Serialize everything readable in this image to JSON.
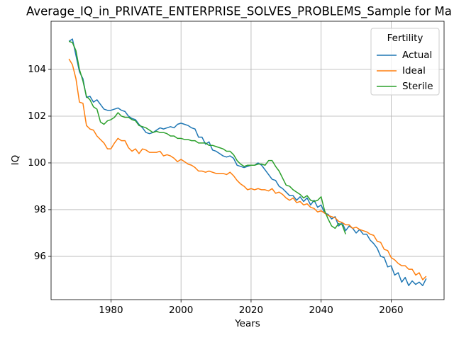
{
  "chart_data": {
    "type": "line",
    "title": "Average_IQ_in_PRIVATE_ENTERPRISE_SOLVES_PROBLEMS_Sample for Ma",
    "xlabel": "Years",
    "ylabel": "IQ",
    "legend_title": "Fertility",
    "legend": "upper right",
    "grid": true,
    "x": [
      1968,
      1969,
      1970,
      1971,
      1972,
      1973,
      1974,
      1975,
      1976,
      1977,
      1978,
      1979,
      1980,
      1981,
      1982,
      1983,
      1984,
      1985,
      1986,
      1987,
      1988,
      1989,
      1990,
      1991,
      1992,
      1993,
      1994,
      1995,
      1996,
      1997,
      1998,
      1999,
      2000,
      2001,
      2002,
      2003,
      2004,
      2005,
      2006,
      2007,
      2008,
      2009,
      2010,
      2011,
      2012,
      2013,
      2014,
      2015,
      2016,
      2017,
      2018,
      2019,
      2020,
      2021,
      2022,
      2023,
      2024,
      2025,
      2026,
      2027,
      2028,
      2029,
      2030,
      2031,
      2032,
      2033,
      2034,
      2035,
      2036,
      2037,
      2038,
      2039,
      2040,
      2041,
      2042,
      2043,
      2044,
      2045,
      2046,
      2047,
      2048,
      2049,
      2050,
      2051,
      2052,
      2053,
      2054,
      2055,
      2056,
      2057,
      2058,
      2059,
      2060,
      2061,
      2062,
      2063,
      2064,
      2065,
      2066,
      2067,
      2068,
      2069,
      2070
    ],
    "series": [
      {
        "name": "Actual",
        "color": "#1f77b4",
        "values": [
          105.2,
          105.3,
          104.6,
          103.9,
          103.6,
          102.8,
          102.85,
          102.6,
          102.7,
          102.5,
          102.3,
          102.25,
          102.25,
          102.3,
          102.35,
          102.25,
          102.2,
          102.0,
          101.9,
          101.85,
          101.65,
          101.5,
          101.3,
          101.25,
          101.3,
          101.4,
          101.5,
          101.45,
          101.5,
          101.55,
          101.5,
          101.65,
          101.7,
          101.65,
          101.6,
          101.5,
          101.45,
          101.1,
          101.1,
          100.8,
          100.9,
          100.55,
          100.5,
          100.4,
          100.3,
          100.25,
          100.3,
          100.2,
          99.9,
          99.85,
          99.8,
          99.85,
          99.9,
          99.9,
          100.0,
          99.9,
          99.7,
          99.5,
          99.3,
          99.25,
          99.0,
          98.9,
          98.75,
          98.6,
          98.6,
          98.4,
          98.55,
          98.35,
          98.5,
          98.2,
          98.4,
          98.1,
          98.2,
          97.85,
          97.8,
          97.6,
          97.7,
          97.3,
          97.45,
          97.1,
          97.3,
          97.2,
          97.0,
          97.15,
          96.95,
          96.95,
          96.7,
          96.55,
          96.35,
          96.0,
          95.95,
          95.55,
          95.6,
          95.2,
          95.3,
          94.9,
          95.1,
          94.75,
          94.95,
          94.8,
          94.9,
          94.75,
          95.05
        ]
      },
      {
        "name": "Ideal",
        "color": "#ff7f0e",
        "values": [
          104.45,
          104.2,
          103.6,
          102.6,
          102.55,
          101.6,
          101.45,
          101.4,
          101.15,
          101.0,
          100.85,
          100.6,
          100.6,
          100.85,
          101.05,
          100.95,
          100.95,
          100.65,
          100.5,
          100.6,
          100.4,
          100.6,
          100.55,
          100.45,
          100.45,
          100.45,
          100.5,
          100.3,
          100.35,
          100.3,
          100.2,
          100.05,
          100.15,
          100.05,
          99.95,
          99.9,
          99.8,
          99.65,
          99.65,
          99.6,
          99.65,
          99.6,
          99.55,
          99.55,
          99.55,
          99.5,
          99.6,
          99.45,
          99.25,
          99.1,
          99.0,
          98.85,
          98.9,
          98.85,
          98.9,
          98.85,
          98.85,
          98.8,
          98.9,
          98.7,
          98.75,
          98.65,
          98.5,
          98.4,
          98.5,
          98.3,
          98.35,
          98.2,
          98.25,
          98.1,
          98.05,
          97.9,
          97.95,
          97.85,
          97.75,
          97.7,
          97.65,
          97.5,
          97.45,
          97.35,
          97.35,
          97.2,
          97.25,
          97.15,
          97.1,
          97.05,
          96.95,
          96.9,
          96.65,
          96.6,
          96.3,
          96.25,
          95.95,
          95.85,
          95.7,
          95.6,
          95.6,
          95.45,
          95.45,
          95.2,
          95.3,
          95.0,
          95.15
        ]
      },
      {
        "name": "Sterile",
        "color": "#2ca02c",
        "values": [
          105.2,
          105.15,
          104.8,
          104.0,
          103.5,
          102.85,
          102.7,
          102.4,
          102.3,
          101.75,
          101.65,
          101.8,
          101.85,
          101.95,
          102.15,
          102.0,
          101.95,
          101.95,
          101.85,
          101.8,
          101.6,
          101.55,
          101.5,
          101.4,
          101.3,
          101.35,
          101.3,
          101.3,
          101.25,
          101.15,
          101.15,
          101.05,
          101.05,
          101.0,
          101.0,
          100.95,
          100.95,
          100.85,
          100.85,
          100.85,
          100.75,
          100.75,
          100.7,
          100.65,
          100.6,
          100.5,
          100.5,
          100.35,
          100.1,
          99.95,
          99.85,
          99.9,
          99.9,
          99.9,
          99.95,
          99.95,
          99.9,
          100.1,
          100.1,
          99.85,
          99.65,
          99.35,
          99.05,
          99.0,
          98.85,
          98.75,
          98.65,
          98.5,
          98.6,
          98.4,
          98.35,
          98.4,
          98.55,
          97.95,
          97.6,
          97.3,
          97.2,
          97.4,
          97.35,
          96.95,
          null,
          null,
          null,
          null,
          null,
          null,
          null,
          null,
          null,
          null,
          null,
          null,
          null,
          null,
          null,
          null,
          null,
          null,
          null,
          null,
          null,
          null,
          null
        ]
      }
    ],
    "xlim": [
      1962.9,
      2075.1
    ],
    "xticks": [
      1980,
      2000,
      2020,
      2040,
      2060
    ],
    "ylim": [
      94.15,
      106.06
    ],
    "yticks": [
      96,
      98,
      100,
      102,
      104
    ]
  }
}
